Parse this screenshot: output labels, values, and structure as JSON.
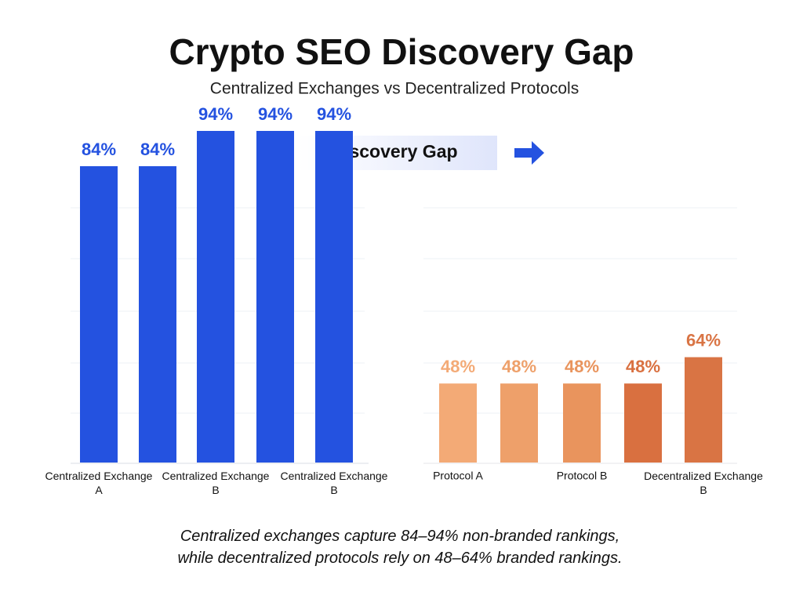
{
  "title": "Crypto SEO Discovery Gap",
  "subtitle": "Centralized Exchanges vs Decentralized Protocols",
  "annotation": "Discovery Gap",
  "caption": "Centralized exchanges capture 84–94% non-branded rankings, while decentralized protocols rely on 48–64% branded rankings.",
  "chart_data": [
    {
      "type": "bar",
      "categories": [
        "Centralized Exchange A",
        null,
        "Centralized Exchange B",
        null,
        "Centralized Exchange B"
      ],
      "values": [
        84,
        84,
        94,
        94,
        94
      ],
      "value_labels": [
        "84%",
        "84%",
        "94%",
        "94%",
        "94%"
      ],
      "colors": [
        "#2452e0",
        "#2452e0",
        "#2452e0",
        "#2452e0",
        "#2452e0"
      ],
      "ylim": [
        0,
        100
      ]
    },
    {
      "type": "bar",
      "categories": [
        "Protocol A",
        null,
        "Protocol B",
        null,
        "Decentralized Exchange B"
      ],
      "values": [
        48,
        48,
        48,
        48,
        64
      ],
      "value_labels": [
        "48%",
        "48%",
        "48%",
        "48%",
        "64%"
      ],
      "colors": [
        "#f3aa76",
        "#eea06a",
        "#e9945d",
        "#d97040",
        "#d97444"
      ],
      "ylim": [
        0,
        100
      ]
    }
  ]
}
